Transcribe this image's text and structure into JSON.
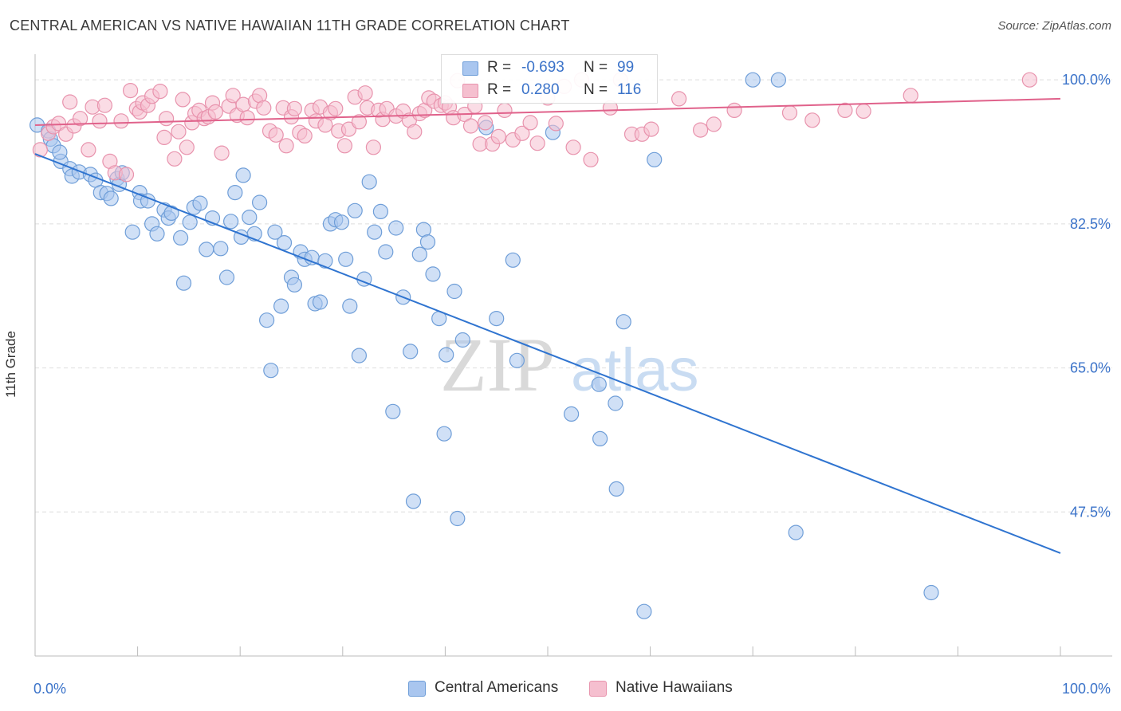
{
  "title": "CENTRAL AMERICAN VS NATIVE HAWAIIAN 11TH GRADE CORRELATION CHART",
  "source": "Source: ZipAtlas.com",
  "watermark": {
    "zip": "ZIP",
    "atlas": "atlas"
  },
  "legend_top": {
    "rows": [
      {
        "r_label": "R =",
        "r_value": "-0.693",
        "n_label": "N =",
        "n_value": "99"
      },
      {
        "r_label": "R =",
        "r_value": "0.280",
        "n_label": "N =",
        "n_value": "116"
      }
    ]
  },
  "legend_bottom": {
    "items": [
      "Central Americans",
      "Native Hawaiians"
    ]
  },
  "colors": {
    "blue_fill": "#a9c6ef",
    "blue_stroke": "#6f9ed8",
    "blue_line": "#2f74d0",
    "pink_fill": "#f5bfcf",
    "pink_stroke": "#e893ad",
    "pink_line": "#e0628b",
    "tick_text": "#3b73c9",
    "grid": "#dedede"
  },
  "chart_data": {
    "type": "scatter",
    "title": "CENTRAL AMERICAN VS NATIVE HAWAIIAN 11TH GRADE CORRELATION CHART",
    "xlabel": "",
    "ylabel": "11th Grade",
    "xlim": [
      0,
      100
    ],
    "ylim": [
      30,
      102
    ],
    "x_tick_labels": [
      {
        "value": 0,
        "label": "0.0%"
      },
      {
        "value": 100,
        "label": "100.0%"
      }
    ],
    "y_tick_labels": [
      {
        "value": 100,
        "label": "100.0%"
      },
      {
        "value": 82.5,
        "label": "82.5%"
      },
      {
        "value": 65,
        "label": "65.0%"
      },
      {
        "value": 47.5,
        "label": "47.5%"
      }
    ],
    "grid": true,
    "legend_position": "bottom",
    "series": [
      {
        "name": "Central Americans",
        "r": -0.693,
        "n": 99,
        "trend": {
          "x": [
            0,
            100
          ],
          "y": [
            91,
            42.5
          ]
        },
        "points": [
          [
            0.2,
            94.5
          ],
          [
            1.3,
            93.8
          ],
          [
            1.5,
            92.8
          ],
          [
            1.8,
            92.0
          ],
          [
            2.5,
            90.1
          ],
          [
            2.4,
            91.2
          ],
          [
            3.4,
            89.2
          ],
          [
            3.6,
            88.3
          ],
          [
            4.3,
            88.8
          ],
          [
            5.4,
            88.5
          ],
          [
            5.9,
            87.8
          ],
          [
            6.4,
            86.3
          ],
          [
            7.0,
            86.2
          ],
          [
            7.4,
            85.6
          ],
          [
            8.0,
            88.0
          ],
          [
            8.2,
            87.3
          ],
          [
            8.5,
            88.7
          ],
          [
            10.2,
            86.3
          ],
          [
            10.3,
            85.3
          ],
          [
            11.0,
            85.3
          ],
          [
            9.5,
            81.5
          ],
          [
            11.4,
            82.5
          ],
          [
            11.9,
            81.3
          ],
          [
            12.6,
            84.2
          ],
          [
            13.0,
            83.2
          ],
          [
            13.3,
            83.8
          ],
          [
            14.2,
            80.8
          ],
          [
            14.5,
            75.3
          ],
          [
            15.1,
            82.7
          ],
          [
            15.5,
            84.5
          ],
          [
            16.1,
            85.0
          ],
          [
            16.7,
            79.4
          ],
          [
            17.3,
            83.2
          ],
          [
            18.1,
            79.5
          ],
          [
            18.7,
            76.0
          ],
          [
            19.1,
            82.8
          ],
          [
            19.5,
            86.3
          ],
          [
            20.1,
            80.9
          ],
          [
            20.3,
            88.4
          ],
          [
            20.9,
            83.3
          ],
          [
            21.4,
            81.3
          ],
          [
            21.9,
            85.1
          ],
          [
            22.6,
            70.8
          ],
          [
            23.0,
            64.7
          ],
          [
            23.4,
            81.5
          ],
          [
            24.0,
            72.5
          ],
          [
            24.3,
            80.2
          ],
          [
            25.0,
            76.0
          ],
          [
            25.3,
            75.1
          ],
          [
            25.9,
            79.1
          ],
          [
            26.3,
            78.2
          ],
          [
            27.0,
            78.4
          ],
          [
            27.3,
            72.8
          ],
          [
            27.8,
            73.0
          ],
          [
            28.3,
            78.0
          ],
          [
            28.8,
            82.5
          ],
          [
            29.3,
            83.0
          ],
          [
            29.9,
            82.7
          ],
          [
            30.3,
            78.2
          ],
          [
            30.7,
            72.5
          ],
          [
            31.2,
            84.1
          ],
          [
            31.6,
            66.5
          ],
          [
            32.1,
            75.8
          ],
          [
            32.6,
            87.6
          ],
          [
            33.1,
            81.5
          ],
          [
            33.7,
            84.0
          ],
          [
            34.2,
            79.1
          ],
          [
            34.9,
            59.7
          ],
          [
            35.2,
            82.0
          ],
          [
            35.9,
            73.6
          ],
          [
            36.6,
            67.0
          ],
          [
            36.9,
            48.8
          ],
          [
            37.5,
            78.8
          ],
          [
            37.9,
            81.8
          ],
          [
            38.3,
            80.3
          ],
          [
            38.8,
            76.4
          ],
          [
            39.4,
            71.0
          ],
          [
            39.9,
            57.0
          ],
          [
            40.1,
            66.6
          ],
          [
            40.9,
            74.3
          ],
          [
            41.2,
            46.7
          ],
          [
            41.7,
            68.4
          ],
          [
            44.0,
            94.2
          ],
          [
            45.0,
            71.0
          ],
          [
            46.6,
            78.1
          ],
          [
            47.0,
            65.9
          ],
          [
            50.5,
            93.6
          ],
          [
            52.3,
            59.4
          ],
          [
            55.1,
            56.4
          ],
          [
            56.6,
            60.7
          ],
          [
            56.7,
            50.3
          ],
          [
            57.4,
            70.6
          ],
          [
            60.4,
            90.3
          ],
          [
            70.0,
            100.0
          ],
          [
            72.5,
            100.0
          ],
          [
            74.2,
            45.0
          ],
          [
            87.4,
            37.7
          ],
          [
            59.4,
            35.4
          ],
          [
            55.0,
            63.0
          ]
        ]
      },
      {
        "name": "Native Hawaiians",
        "r": 0.28,
        "n": 116,
        "trend": {
          "x": [
            0,
            100
          ],
          "y": [
            94.5,
            97.7
          ]
        },
        "points": [
          [
            0.5,
            91.5
          ],
          [
            1.3,
            93.5
          ],
          [
            1.8,
            94.3
          ],
          [
            2.3,
            94.7
          ],
          [
            3.0,
            93.4
          ],
          [
            3.4,
            97.3
          ],
          [
            3.8,
            94.4
          ],
          [
            4.4,
            95.3
          ],
          [
            5.2,
            91.5
          ],
          [
            5.6,
            96.7
          ],
          [
            6.3,
            95.0
          ],
          [
            6.8,
            96.9
          ],
          [
            7.3,
            90.1
          ],
          [
            7.8,
            88.7
          ],
          [
            8.4,
            95.0
          ],
          [
            8.9,
            88.5
          ],
          [
            9.3,
            98.7
          ],
          [
            9.9,
            96.5
          ],
          [
            10.2,
            96.1
          ],
          [
            10.5,
            97.2
          ],
          [
            11.0,
            96.9
          ],
          [
            11.4,
            98.0
          ],
          [
            12.2,
            98.6
          ],
          [
            12.6,
            93.0
          ],
          [
            12.8,
            95.3
          ],
          [
            13.6,
            90.4
          ],
          [
            14.0,
            93.7
          ],
          [
            14.4,
            97.6
          ],
          [
            14.8,
            91.8
          ],
          [
            15.3,
            94.8
          ],
          [
            15.6,
            95.9
          ],
          [
            16.0,
            96.3
          ],
          [
            16.5,
            95.3
          ],
          [
            16.9,
            95.5
          ],
          [
            17.3,
            97.2
          ],
          [
            17.6,
            96.1
          ],
          [
            18.2,
            91.1
          ],
          [
            18.9,
            96.8
          ],
          [
            19.3,
            98.1
          ],
          [
            19.7,
            95.7
          ],
          [
            20.3,
            97.0
          ],
          [
            20.7,
            95.4
          ],
          [
            21.5,
            97.4
          ],
          [
            21.9,
            98.1
          ],
          [
            22.3,
            96.6
          ],
          [
            22.9,
            93.8
          ],
          [
            23.5,
            93.3
          ],
          [
            24.2,
            96.6
          ],
          [
            24.5,
            92.0
          ],
          [
            25.0,
            95.5
          ],
          [
            25.3,
            96.5
          ],
          [
            25.8,
            93.6
          ],
          [
            26.3,
            93.2
          ],
          [
            27.0,
            96.3
          ],
          [
            27.4,
            95.0
          ],
          [
            27.8,
            96.7
          ],
          [
            28.3,
            94.5
          ],
          [
            28.8,
            96.0
          ],
          [
            29.3,
            96.5
          ],
          [
            29.6,
            93.8
          ],
          [
            30.2,
            92.0
          ],
          [
            30.6,
            94.0
          ],
          [
            31.2,
            97.9
          ],
          [
            31.6,
            94.9
          ],
          [
            32.2,
            98.4
          ],
          [
            32.4,
            96.6
          ],
          [
            33.0,
            91.8
          ],
          [
            33.5,
            96.3
          ],
          [
            33.9,
            95.2
          ],
          [
            34.3,
            96.5
          ],
          [
            35.2,
            95.6
          ],
          [
            35.9,
            96.2
          ],
          [
            36.5,
            95.1
          ],
          [
            37.0,
            93.7
          ],
          [
            37.5,
            95.9
          ],
          [
            38.0,
            96.3
          ],
          [
            38.4,
            97.8
          ],
          [
            38.9,
            97.4
          ],
          [
            39.6,
            96.9
          ],
          [
            40.0,
            97.2
          ],
          [
            40.4,
            96.7
          ],
          [
            40.8,
            95.4
          ],
          [
            41.2,
            99.9
          ],
          [
            41.9,
            95.8
          ],
          [
            42.5,
            94.4
          ],
          [
            42.9,
            96.8
          ],
          [
            43.4,
            92.2
          ],
          [
            43.9,
            94.8
          ],
          [
            44.6,
            92.2
          ],
          [
            45.2,
            93.1
          ],
          [
            45.8,
            96.3
          ],
          [
            46.6,
            92.7
          ],
          [
            47.5,
            93.5
          ],
          [
            48.3,
            94.8
          ],
          [
            49.0,
            92.3
          ],
          [
            50.0,
            97.8
          ],
          [
            50.8,
            94.7
          ],
          [
            51.6,
            99.2
          ],
          [
            52.5,
            91.8
          ],
          [
            53.3,
            100.0
          ],
          [
            54.2,
            90.3
          ],
          [
            56.1,
            96.6
          ],
          [
            57.1,
            100.0
          ],
          [
            58.2,
            93.4
          ],
          [
            59.2,
            93.4
          ],
          [
            60.1,
            94.0
          ],
          [
            62.8,
            97.7
          ],
          [
            64.9,
            93.9
          ],
          [
            66.2,
            94.6
          ],
          [
            68.2,
            96.3
          ],
          [
            73.6,
            96.0
          ],
          [
            75.8,
            95.1
          ],
          [
            79.0,
            96.3
          ],
          [
            80.8,
            96.2
          ],
          [
            85.4,
            98.1
          ],
          [
            97.0,
            100.0
          ]
        ]
      }
    ]
  }
}
